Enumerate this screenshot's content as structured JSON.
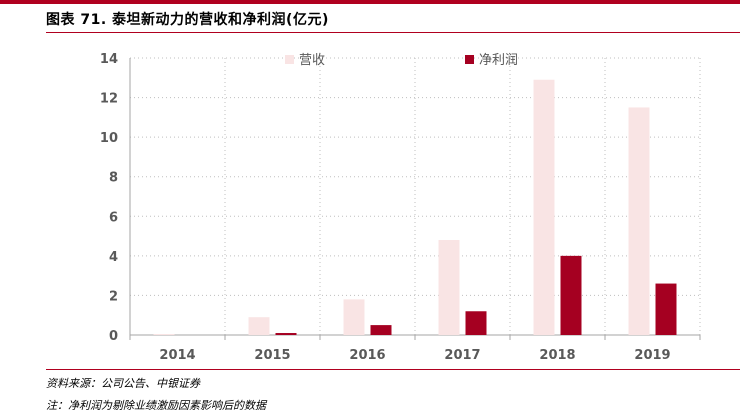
{
  "figure": {
    "title": "图表 71. 泰坦新动力的营收和净利润(亿元)",
    "source": "资料来源：公司公告、中银证券",
    "note": "注：净利润为剔除业绩激励因素影响后的数据"
  },
  "colors": {
    "accent": "#b0001f",
    "revenue": "#f9e4e4",
    "net_profit": "#a50021",
    "axis_text": "#595959"
  },
  "chart_data": {
    "type": "bar",
    "title": "",
    "xlabel": "",
    "ylabel": "",
    "categories": [
      "2014",
      "2015",
      "2016",
      "2017",
      "2018",
      "2019"
    ],
    "series": [
      {
        "name": "营收",
        "values": [
          0.05,
          0.9,
          1.8,
          4.8,
          12.9,
          11.5
        ]
      },
      {
        "name": "净利润",
        "values": [
          0,
          0.1,
          0.5,
          1.2,
          4.0,
          2.6
        ]
      }
    ],
    "ylim": [
      0,
      14
    ],
    "yticks": [
      "0",
      "2",
      "4",
      "6",
      "8",
      "10",
      "12",
      "14"
    ],
    "grid": "dotted",
    "legend": "top"
  }
}
